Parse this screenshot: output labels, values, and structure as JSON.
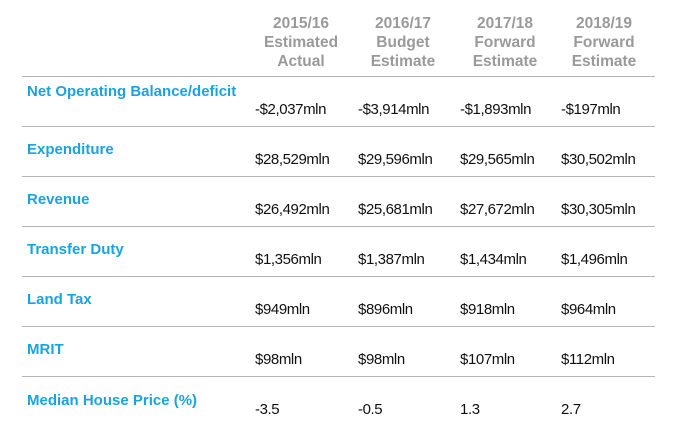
{
  "header": {
    "columns": [
      {
        "line1": "2015/16",
        "line2": "Estimated",
        "line3": "Actual"
      },
      {
        "line1": "2016/17",
        "line2": "Budget",
        "line3": "Estimate"
      },
      {
        "line1": "2017/18",
        "line2": "Forward",
        "line3": "Estimate"
      },
      {
        "line1": "2018/19",
        "line2": "Forward",
        "line3": "Estimate"
      }
    ]
  },
  "rows": [
    {
      "label": "Net Operating Balance/deficit",
      "values": [
        "-$2,037mln",
        "-$3,914mln",
        "-$1,893mln",
        "-$197mln"
      ]
    },
    {
      "label": "Expenditure",
      "values": [
        "$28,529mln",
        "$29,596mln",
        "$29,565mln",
        "$30,502mln"
      ]
    },
    {
      "label": "Revenue",
      "values": [
        "$26,492mln",
        "$25,681mln",
        "$27,672mln",
        "$30,305mln"
      ]
    },
    {
      "label": "Transfer Duty",
      "values": [
        "$1,356mln",
        "$1,387mln",
        "$1,434mln",
        "$1,496mln"
      ]
    },
    {
      "label": "Land Tax",
      "values": [
        "$949mln",
        "$896mln",
        "$918mln",
        "$964mln"
      ]
    },
    {
      "label": "MRIT",
      "values": [
        "$98mln",
        "$98mln",
        "$107mln",
        "$112mln"
      ]
    },
    {
      "label": "Median House Price (%)",
      "values": [
        "-3.5",
        "-0.5",
        "1.3",
        "2.7"
      ]
    }
  ],
  "colors": {
    "label": "#1aa3de",
    "header": "#9a9a9a",
    "rule": "#b5b5b5",
    "value": "#111111"
  }
}
